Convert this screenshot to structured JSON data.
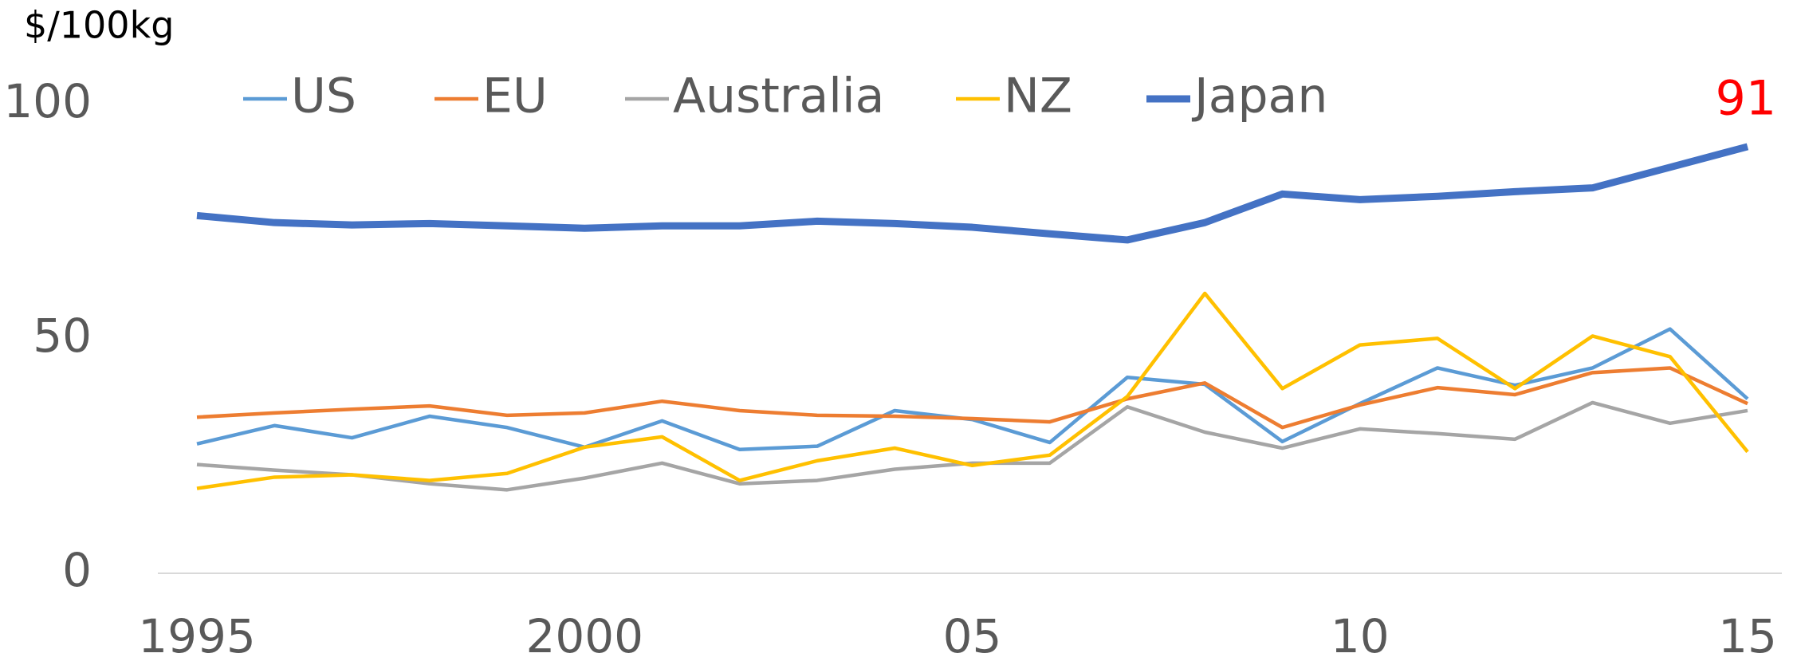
{
  "chart_data": {
    "type": "line",
    "y_axis_label": "$/100kg",
    "annotation": "91",
    "annotation_color": "#ff0000",
    "x": [
      1995,
      1996,
      1997,
      1998,
      1999,
      2000,
      2001,
      2002,
      2003,
      2004,
      2005,
      2006,
      2007,
      2008,
      2009,
      2010,
      2011,
      2012,
      2013,
      2014,
      2015
    ],
    "xlim": [
      1995,
      2015
    ],
    "xticks": [
      1995,
      2000,
      {
        "value": 2005,
        "label": "05"
      },
      {
        "value": 2010,
        "label": "10"
      },
      {
        "value": 2015,
        "label": "15"
      }
    ],
    "ylim": [
      0,
      100
    ],
    "yticks": [
      0,
      50,
      100
    ],
    "grid": false,
    "legend": "top",
    "series": [
      {
        "name": "US",
        "color": "#5b9bd5",
        "width": 4.5,
        "values": [
          27.6,
          31.5,
          28.9,
          33.5,
          31.1,
          26.9,
          32.5,
          26.4,
          27.1,
          34.7,
          32.8,
          27.9,
          41.8,
          40.3,
          28.1,
          36.2,
          43.8,
          40.1,
          43.8,
          52.1,
          37.2
        ]
      },
      {
        "name": "EU",
        "color": "#ed7d31",
        "width": 4.5,
        "values": [
          33.3,
          34.2,
          35.0,
          35.7,
          33.7,
          34.2,
          36.7,
          34.7,
          33.7,
          33.5,
          33.0,
          32.3,
          37.2,
          40.6,
          31.1,
          35.9,
          39.6,
          38.1,
          42.8,
          43.8,
          36.2
        ]
      },
      {
        "name": "Australia",
        "color": "#a5a5a5",
        "width": 4.5,
        "values": [
          23.2,
          22.0,
          21.0,
          19.1,
          17.8,
          20.3,
          23.5,
          19.1,
          19.8,
          22.2,
          23.5,
          23.5,
          35.5,
          30.1,
          26.7,
          30.8,
          29.8,
          28.6,
          36.4,
          32.0,
          34.7
        ]
      },
      {
        "name": "NZ",
        "color": "#ffc000",
        "width": 4.5,
        "values": [
          18.1,
          20.5,
          21.0,
          19.8,
          21.3,
          26.9,
          29.1,
          19.8,
          24.0,
          26.7,
          23.0,
          25.2,
          37.7,
          59.7,
          39.4,
          48.7,
          50.1,
          39.4,
          50.6,
          46.2,
          25.9
        ]
      },
      {
        "name": "Japan",
        "color": "#4472c4",
        "width": 9,
        "values": [
          76.3,
          74.8,
          74.3,
          74.6,
          74.1,
          73.6,
          74.1,
          74.1,
          75.1,
          74.6,
          73.8,
          72.4,
          71.1,
          74.8,
          80.9,
          79.7,
          80.4,
          81.4,
          82.2,
          86.6,
          91
        ]
      }
    ]
  }
}
